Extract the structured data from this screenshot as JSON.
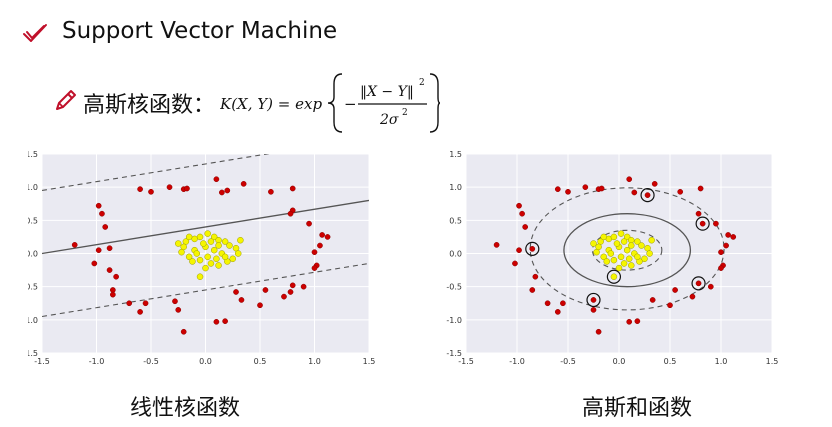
{
  "slide": {
    "title": "Support Vector Machine",
    "formula_label": "高斯核函数：",
    "formula": {
      "lhs": "K(X, Y) = exp",
      "minus": "−",
      "numerator": "‖X − Y‖",
      "numerator_exp": "2",
      "denominator": "2σ",
      "denominator_exp": "2"
    },
    "captions": {
      "left": "线性核函数",
      "right": "高斯和函数"
    }
  },
  "icons": {
    "title_bullet": "checkmark-icon",
    "formula_bullet": "pencil-icon"
  },
  "colors": {
    "red_points": "#cc0000",
    "yellow_points": "#f5f500",
    "plot_bg": "#eaeaf2",
    "accent": "#c0102a"
  },
  "chart_data": [
    {
      "type": "scatter",
      "title": "",
      "xlim": [
        -1.5,
        1.5
      ],
      "ylim": [
        -1.5,
        1.5
      ],
      "x_ticks": [
        "-1.5",
        "-1.0",
        "-0.5",
        "0.0",
        "0.5",
        "1.0",
        "1.5"
      ],
      "y_ticks": [
        "1.5",
        "1.0",
        "0.5",
        "0.0",
        "-0.5",
        "-1.0",
        "-1.5"
      ],
      "lines": [
        {
          "style": "solid",
          "points": [
            [
              -1.5,
              0.0
            ],
            [
              1.5,
              0.8
            ]
          ]
        },
        {
          "style": "dashed",
          "points": [
            [
              -1.5,
              0.95
            ],
            [
              1.5,
              1.75
            ]
          ]
        },
        {
          "style": "dashed",
          "points": [
            [
              -1.5,
              -0.95
            ],
            [
              1.5,
              -0.15
            ]
          ]
        }
      ],
      "series": [
        {
          "color": "red",
          "points": [
            [
              -0.6,
              0.97
            ],
            [
              -0.5,
              0.93
            ],
            [
              -0.33,
              1.0
            ],
            [
              -0.2,
              0.97
            ],
            [
              -0.17,
              0.98
            ],
            [
              0.1,
              1.12
            ],
            [
              0.15,
              0.92
            ],
            [
              0.2,
              0.95
            ],
            [
              0.35,
              1.05
            ],
            [
              0.6,
              0.93
            ],
            [
              0.8,
              0.98
            ],
            [
              0.8,
              0.65
            ],
            [
              0.78,
              0.6
            ],
            [
              0.95,
              0.45
            ],
            [
              1.07,
              0.28
            ],
            [
              1.12,
              0.25
            ],
            [
              1.05,
              0.12
            ],
            [
              1.0,
              0.02
            ],
            [
              1.02,
              -0.18
            ],
            [
              1.0,
              -0.22
            ],
            [
              0.9,
              -0.5
            ],
            [
              0.8,
              -0.48
            ],
            [
              0.78,
              -0.58
            ],
            [
              0.72,
              -0.65
            ],
            [
              0.55,
              -0.55
            ],
            [
              0.5,
              -0.78
            ],
            [
              0.33,
              -0.7
            ],
            [
              0.28,
              -0.58
            ],
            [
              0.1,
              -1.03
            ],
            [
              0.18,
              -1.02
            ],
            [
              -0.2,
              -1.18
            ],
            [
              -0.25,
              -0.85
            ],
            [
              -0.28,
              -0.72
            ],
            [
              -0.55,
              -0.75
            ],
            [
              -0.6,
              -0.88
            ],
            [
              -0.7,
              -0.75
            ],
            [
              -0.85,
              -0.55
            ],
            [
              -0.85,
              -0.62
            ],
            [
              -0.82,
              -0.35
            ],
            [
              -0.88,
              -0.25
            ],
            [
              -1.02,
              -0.15
            ],
            [
              -0.98,
              0.05
            ],
            [
              -0.88,
              0.08
            ],
            [
              -0.92,
              0.4
            ],
            [
              -0.95,
              0.6
            ],
            [
              -0.98,
              0.72
            ],
            [
              -1.2,
              0.13
            ]
          ]
        },
        {
          "color": "yellow",
          "points": [
            [
              -0.18,
              0.18
            ],
            [
              -0.1,
              0.22
            ],
            [
              -0.05,
              0.25
            ],
            [
              0.02,
              0.3
            ],
            [
              0.08,
              0.25
            ],
            [
              0.12,
              0.2
            ],
            [
              0.18,
              0.18
            ],
            [
              0.22,
              0.12
            ],
            [
              0.28,
              0.08
            ],
            [
              0.3,
              0.0
            ],
            [
              0.25,
              -0.08
            ],
            [
              0.2,
              -0.12
            ],
            [
              0.12,
              -0.18
            ],
            [
              0.05,
              -0.15
            ],
            [
              -0.05,
              -0.1
            ],
            [
              -0.15,
              -0.05
            ],
            [
              -0.22,
              0.02
            ],
            [
              -0.2,
              0.1
            ],
            [
              -0.1,
              0.05
            ],
            [
              0.0,
              0.1
            ],
            [
              0.08,
              0.05
            ],
            [
              0.15,
              0.0
            ],
            [
              0.1,
              -0.08
            ],
            [
              0.02,
              -0.05
            ],
            [
              -0.08,
              0.0
            ],
            [
              -0.02,
              0.15
            ],
            [
              0.05,
              0.18
            ],
            [
              -0.12,
              -0.12
            ],
            [
              0.18,
              -0.05
            ],
            [
              0.0,
              -0.22
            ],
            [
              -0.05,
              -0.35
            ],
            [
              0.32,
              0.2
            ],
            [
              -0.25,
              0.15
            ],
            [
              0.12,
              0.12
            ],
            [
              -0.15,
              0.25
            ]
          ]
        }
      ]
    },
    {
      "type": "scatter",
      "title": "",
      "xlim": [
        -1.5,
        1.5
      ],
      "ylim": [
        -1.5,
        1.5
      ],
      "x_ticks": [
        "-1.5",
        "-1.0",
        "-0.5",
        "0.0",
        "0.5",
        "1.0",
        "1.5"
      ],
      "y_ticks": [
        "1.5",
        "1.0",
        "0.5",
        "0.0",
        "-0.5",
        "-1.0",
        "-1.5"
      ],
      "contours": [
        {
          "style": "solid",
          "cx": 0.08,
          "cy": 0.05,
          "rx": 0.62,
          "ry": 0.55
        },
        {
          "style": "dashed",
          "cx": 0.08,
          "cy": 0.05,
          "rx": 0.34,
          "ry": 0.3
        },
        {
          "style": "dashed",
          "cx": 0.08,
          "cy": 0.07,
          "rx": 0.95,
          "ry": 0.92
        }
      ],
      "support_vectors": [
        [
          0.28,
          0.88
        ],
        [
          0.82,
          0.45
        ],
        [
          0.78,
          -0.45
        ],
        [
          -0.25,
          -0.7
        ],
        [
          -0.85,
          0.07
        ],
        [
          -0.05,
          -0.35
        ]
      ],
      "series": [
        {
          "color": "red",
          "points": [
            [
              -0.6,
              0.97
            ],
            [
              -0.5,
              0.93
            ],
            [
              -0.33,
              1.0
            ],
            [
              -0.2,
              0.97
            ],
            [
              -0.17,
              0.98
            ],
            [
              0.1,
              1.12
            ],
            [
              0.15,
              0.92
            ],
            [
              0.28,
              0.88
            ],
            [
              0.35,
              1.05
            ],
            [
              0.6,
              0.93
            ],
            [
              0.8,
              0.98
            ],
            [
              0.82,
              0.45
            ],
            [
              0.78,
              0.6
            ],
            [
              0.95,
              0.45
            ],
            [
              1.07,
              0.28
            ],
            [
              1.12,
              0.25
            ],
            [
              1.05,
              0.12
            ],
            [
              1.0,
              0.02
            ],
            [
              1.02,
              -0.18
            ],
            [
              1.0,
              -0.22
            ],
            [
              0.9,
              -0.5
            ],
            [
              0.78,
              -0.45
            ],
            [
              0.72,
              -0.65
            ],
            [
              0.55,
              -0.55
            ],
            [
              0.5,
              -0.78
            ],
            [
              0.33,
              -0.7
            ],
            [
              0.1,
              -1.03
            ],
            [
              0.18,
              -1.02
            ],
            [
              -0.2,
              -1.18
            ],
            [
              -0.25,
              -0.85
            ],
            [
              -0.25,
              -0.7
            ],
            [
              -0.55,
              -0.75
            ],
            [
              -0.6,
              -0.88
            ],
            [
              -0.7,
              -0.75
            ],
            [
              -0.85,
              -0.55
            ],
            [
              -0.82,
              -0.35
            ],
            [
              -0.85,
              0.07
            ],
            [
              -1.02,
              -0.15
            ],
            [
              -0.98,
              0.05
            ],
            [
              -0.92,
              0.4
            ],
            [
              -0.95,
              0.6
            ],
            [
              -0.98,
              0.72
            ],
            [
              -1.2,
              0.13
            ]
          ]
        },
        {
          "color": "yellow",
          "points": [
            [
              -0.18,
              0.18
            ],
            [
              -0.1,
              0.22
            ],
            [
              -0.05,
              0.25
            ],
            [
              0.02,
              0.3
            ],
            [
              0.08,
              0.25
            ],
            [
              0.12,
              0.2
            ],
            [
              0.18,
              0.18
            ],
            [
              0.22,
              0.12
            ],
            [
              0.28,
              0.08
            ],
            [
              0.3,
              0.0
            ],
            [
              0.25,
              -0.08
            ],
            [
              0.2,
              -0.12
            ],
            [
              0.12,
              -0.18
            ],
            [
              0.05,
              -0.15
            ],
            [
              -0.05,
              -0.1
            ],
            [
              -0.15,
              -0.05
            ],
            [
              -0.22,
              0.02
            ],
            [
              -0.2,
              0.1
            ],
            [
              -0.1,
              0.05
            ],
            [
              0.0,
              0.1
            ],
            [
              0.08,
              0.05
            ],
            [
              0.15,
              0.0
            ],
            [
              0.1,
              -0.08
            ],
            [
              0.02,
              -0.05
            ],
            [
              -0.08,
              0.0
            ],
            [
              -0.02,
              0.15
            ],
            [
              0.05,
              0.18
            ],
            [
              -0.12,
              -0.12
            ],
            [
              0.18,
              -0.05
            ],
            [
              0.0,
              -0.22
            ],
            [
              -0.05,
              -0.35
            ],
            [
              0.32,
              0.2
            ],
            [
              -0.25,
              0.15
            ],
            [
              0.12,
              0.12
            ],
            [
              -0.15,
              0.25
            ]
          ]
        }
      ]
    }
  ]
}
